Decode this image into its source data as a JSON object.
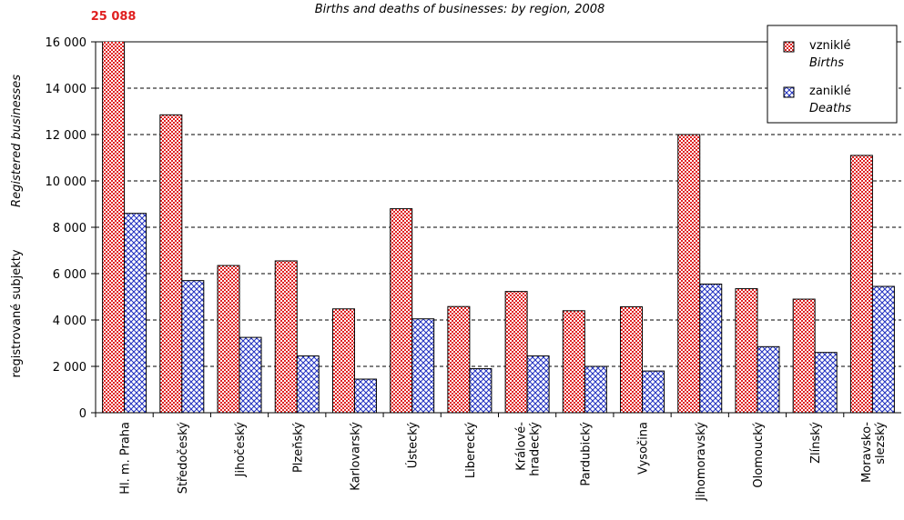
{
  "chart_data": {
    "type": "bar",
    "title": "Births and deaths of businesses: by region, 2008",
    "ylabel": "registrované subjekty",
    "ylabel_en": "Registered businesses",
    "categories": [
      "Hl. m. Praha",
      "Středočeský",
      "Jihočeský",
      "Plzeňský",
      "Karlovarský",
      "Ústecký",
      "Liberecký",
      "Králové-\nhradecký",
      "Pardubický",
      "Vysočina",
      "Jihomoravský",
      "Olomoucký",
      "Zlínský",
      "Moravsko-\nslezský"
    ],
    "series": [
      {
        "name": "vzniklé",
        "name_en": "Births",
        "color": "#e02020",
        "pattern": "checker",
        "values": [
          25088,
          12850,
          6350,
          6550,
          4480,
          8800,
          4580,
          5230,
          4400,
          4570,
          12000,
          5350,
          4900,
          11100
        ],
        "value_labels": [
          "25 088",
          null,
          null,
          null,
          null,
          null,
          null,
          null,
          null,
          null,
          null,
          null,
          null,
          null
        ]
      },
      {
        "name": "zaniklé",
        "name_en": "Deaths",
        "color": "#2030c0",
        "pattern": "crosshatch",
        "values": [
          8600,
          5700,
          3250,
          2450,
          1450,
          4050,
          1900,
          2450,
          2000,
          1800,
          5550,
          2850,
          2600,
          5450
        ]
      }
    ],
    "ylim": [
      0,
      16000
    ],
    "yticks": [
      0,
      {
        "value": 2000,
        "label": "2 000"
      },
      {
        "value": 4000,
        "label": "4 000"
      },
      {
        "value": 6000,
        "label": "6 000"
      },
      {
        "value": 8000,
        "label": "8 000"
      },
      {
        "value": 10000,
        "label": "10 000"
      },
      {
        "value": 12000,
        "label": "12 000"
      },
      {
        "value": 14000,
        "label": "14 000"
      },
      {
        "value": 16000,
        "label": "16 000"
      }
    ],
    "grid": true,
    "legend": "top-right"
  }
}
